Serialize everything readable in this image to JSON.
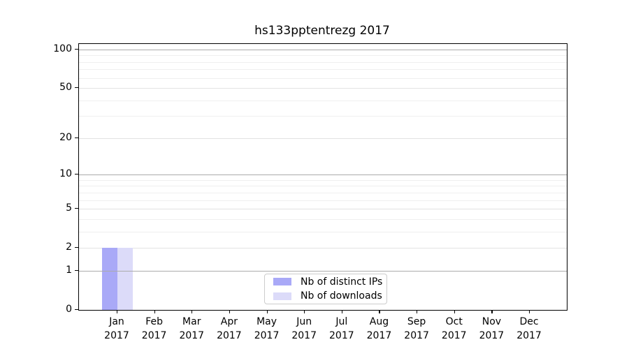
{
  "title": "hs133pptentrezg 2017",
  "chart_data": {
    "type": "bar",
    "title": "hs133pptentrezg 2017",
    "categories": [
      "Jan",
      "Feb",
      "Mar",
      "Apr",
      "May",
      "Jun",
      "Jul",
      "Aug",
      "Sep",
      "Oct",
      "Nov",
      "Dec"
    ],
    "year": "2017",
    "series": [
      {
        "name": "Nb of distinct IPs",
        "color": "#a9a9f7",
        "values": [
          2,
          0,
          0,
          0,
          0,
          0,
          0,
          0,
          0,
          0,
          0,
          0
        ]
      },
      {
        "name": "Nb of downloads",
        "color": "#dcdbf9",
        "values": [
          2,
          0,
          0,
          0,
          0,
          0,
          0,
          0,
          0,
          0,
          0,
          0
        ]
      }
    ],
    "xlabel": "",
    "ylabel": "",
    "yticks": [
      0,
      1,
      2,
      5,
      10,
      20,
      50,
      100
    ],
    "ylim": [
      0,
      110
    ],
    "yscale": "log1p",
    "grid": {
      "on": true,
      "minor_values": [
        3,
        4,
        6,
        7,
        8,
        9,
        30,
        40,
        60,
        70,
        80,
        90
      ],
      "major_light_values": [
        2,
        5,
        20,
        50
      ],
      "decade_values": [
        1,
        10,
        100
      ]
    },
    "legend_position": "lower center"
  },
  "colors": {
    "axis": "#000000",
    "grid_minor": "#efefef",
    "grid_major_light": "#e2e2e2",
    "grid_decade": "#ababab",
    "legend_border": "#cccccc",
    "background": "#ffffff",
    "text": "#000000"
  }
}
